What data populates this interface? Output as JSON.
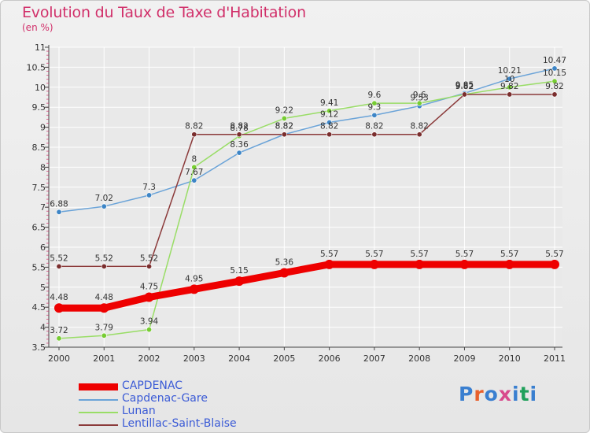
{
  "title": "Evolution du Taux de Taxe d'Habitation",
  "subtitle": "(en %)",
  "logo_text": "Proxiti",
  "logo_colors": [
    "#3a7fd0",
    "#e8602c",
    "#3a7fd0",
    "#d84a8c",
    "#3a7fd0",
    "#1fa05a",
    "#3a7fd0"
  ],
  "colors": {
    "title": "#d1306a",
    "axis_text": "#333333",
    "grid": "#ffffff",
    "legend_text": "#3b5bd6"
  },
  "chart_data": {
    "type": "line",
    "x": [
      "2000",
      "2001",
      "2002",
      "2003",
      "2004",
      "2005",
      "2006",
      "2007",
      "2008",
      "2009",
      "2010",
      "2011"
    ],
    "ylim": [
      3.5,
      11
    ],
    "yticks": [
      3.5,
      4,
      4.5,
      5,
      5.5,
      6,
      6.5,
      7,
      7.5,
      8,
      8.5,
      9,
      9.5,
      10,
      10.5,
      11
    ],
    "ytick_labels": [
      "3.5",
      "4",
      "4.5",
      "5",
      "5.5",
      "6",
      "6.5",
      "7",
      "7.5",
      "8",
      "8.5",
      "9",
      "9.5",
      "10",
      "10.5",
      "11"
    ],
    "grid": true,
    "legend_position": "bottom-left",
    "series": [
      {
        "name": "CAPDENAC",
        "color": "#ee0000",
        "thick": true,
        "values": [
          4.48,
          4.48,
          4.75,
          4.95,
          5.15,
          5.36,
          5.57,
          5.57,
          5.57,
          5.57,
          5.57,
          5.57
        ],
        "labels": [
          "4.48",
          "4.48",
          "4.75",
          "4.95",
          "5.15",
          "5.36",
          "5.57",
          "5.57",
          "5.57",
          "5.57",
          "5.57",
          "5.57"
        ]
      },
      {
        "name": "Capdenac-Gare",
        "color": "#6aa3d8",
        "marker": "#3d85c6",
        "thick": false,
        "values": [
          6.88,
          7.02,
          7.3,
          7.67,
          8.36,
          8.82,
          9.12,
          9.3,
          9.53,
          9.85,
          10.21,
          10.47
        ],
        "labels": [
          "6.88",
          "7.02",
          "7.3",
          "7.67",
          "8.36",
          "8.82",
          "9.12",
          "9.3",
          "9.53",
          "9.85",
          "10.21",
          "10.47"
        ]
      },
      {
        "name": "Lunan",
        "color": "#99dd66",
        "marker": "#77cc33",
        "thick": false,
        "values": [
          3.72,
          3.79,
          3.94,
          8,
          8.78,
          9.22,
          9.41,
          9.6,
          9.6,
          9.82,
          10,
          10.15
        ],
        "labels": [
          "3.72",
          "3.79",
          "3.94",
          "8",
          "8.78",
          "9.22",
          "9.41",
          "9.6",
          "9.6",
          "9.82",
          "10",
          "10.15"
        ]
      },
      {
        "name": "Lentillac-Saint-Blaise",
        "color": "#8b3a3a",
        "marker": "#7a2e2e",
        "thick": false,
        "values": [
          5.52,
          5.52,
          5.52,
          8.82,
          8.82,
          8.82,
          8.82,
          8.82,
          8.82,
          9.82,
          9.82,
          9.82
        ],
        "labels": [
          "5.52",
          "5.52",
          "5.52",
          "8.82",
          "8.82",
          "8.82",
          "8.82",
          "8.82",
          "8.82",
          "9.82",
          "9.82",
          "9.82"
        ]
      }
    ]
  }
}
